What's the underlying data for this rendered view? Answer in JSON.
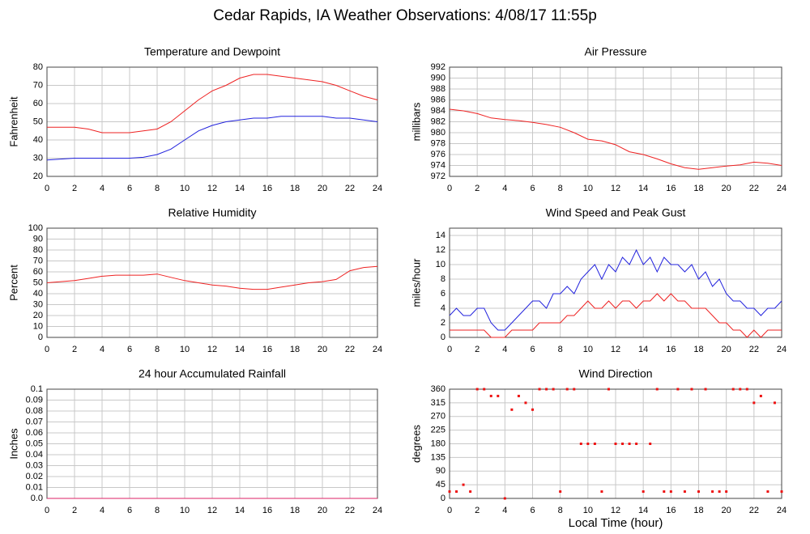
{
  "title": "Cedar Rapids, IA Weather Observations: 4/08/17 11:55p",
  "chart_data": [
    {
      "type": "line",
      "title": "Temperature and Dewpoint",
      "ylabel": "Fahrenheit",
      "x": [
        0,
        1,
        2,
        3,
        4,
        5,
        6,
        7,
        8,
        9,
        10,
        11,
        12,
        13,
        14,
        15,
        16,
        17,
        18,
        19,
        20,
        21,
        22,
        23,
        24
      ],
      "series": [
        {
          "color": "#ee2222",
          "values": [
            47,
            47,
            47,
            46,
            44,
            44,
            44,
            45,
            46,
            50,
            56,
            62,
            67,
            70,
            74,
            76,
            76,
            75,
            74,
            73,
            72,
            70,
            67,
            64,
            62
          ]
        },
        {
          "color": "#2222dd",
          "values": [
            29,
            29.5,
            30,
            30,
            30,
            30,
            30,
            30.5,
            32,
            35,
            40,
            45,
            48,
            50,
            51,
            52,
            52,
            53,
            53,
            53,
            53,
            52,
            52,
            51,
            50
          ]
        }
      ],
      "xlim": [
        0,
        24
      ],
      "xticks": [
        0,
        2,
        4,
        6,
        8,
        10,
        12,
        14,
        16,
        18,
        20,
        22,
        24
      ],
      "ylim": [
        20,
        80
      ],
      "yticks": [
        20,
        30,
        40,
        50,
        60,
        70,
        80
      ],
      "grid": true
    },
    {
      "type": "line",
      "title": "Air Pressure",
      "ylabel": "millibars",
      "x": [
        0,
        1,
        2,
        3,
        4,
        5,
        6,
        7,
        8,
        9,
        10,
        11,
        12,
        13,
        14,
        15,
        16,
        17,
        18,
        19,
        20,
        21,
        22,
        23,
        24
      ],
      "series": [
        {
          "color": "#ee2222",
          "values": [
            984.3,
            984,
            983.5,
            982.7,
            982.4,
            982.2,
            981.9,
            981.5,
            981,
            980,
            978.8,
            978.5,
            977.8,
            976.5,
            976,
            975.2,
            974.3,
            973.6,
            973.3,
            973.6,
            973.9,
            974.1,
            974.6,
            974.4,
            974
          ]
        }
      ],
      "xlim": [
        0,
        24
      ],
      "xticks": [
        0,
        2,
        4,
        6,
        8,
        10,
        12,
        14,
        16,
        18,
        20,
        22,
        24
      ],
      "ylim": [
        972,
        992
      ],
      "yticks": [
        972,
        974,
        976,
        978,
        980,
        982,
        984,
        986,
        988,
        990,
        992
      ],
      "grid": true
    },
    {
      "type": "line",
      "title": "Relative Humidity",
      "ylabel": "Percent",
      "x": [
        0,
        1,
        2,
        3,
        4,
        5,
        6,
        7,
        8,
        9,
        10,
        11,
        12,
        13,
        14,
        15,
        16,
        17,
        18,
        19,
        20,
        21,
        22,
        23,
        24
      ],
      "series": [
        {
          "color": "#ee2222",
          "values": [
            50,
            51,
            52,
            54,
            56,
            57,
            57,
            57,
            58,
            55,
            52,
            50,
            48,
            47,
            45,
            44,
            44,
            46,
            48,
            50,
            51,
            53,
            61,
            64,
            65
          ]
        }
      ],
      "xlim": [
        0,
        24
      ],
      "xticks": [
        0,
        2,
        4,
        6,
        8,
        10,
        12,
        14,
        16,
        18,
        20,
        22,
        24
      ],
      "ylim": [
        0,
        100
      ],
      "yticks": [
        0,
        10,
        20,
        30,
        40,
        50,
        60,
        70,
        80,
        90,
        100
      ],
      "grid": true
    },
    {
      "type": "line",
      "title": "Wind Speed and Peak Gust",
      "ylabel": "miles/hour",
      "x": [
        0,
        0.5,
        1,
        1.5,
        2,
        2.5,
        3,
        3.5,
        4,
        4.5,
        5,
        5.5,
        6,
        6.5,
        7,
        7.5,
        8,
        8.5,
        9,
        9.5,
        10,
        10.5,
        11,
        11.5,
        12,
        12.5,
        13,
        13.5,
        14,
        14.5,
        15,
        15.5,
        16,
        16.5,
        17,
        17.5,
        18,
        18.5,
        19,
        19.5,
        20,
        20.5,
        21,
        21.5,
        22,
        22.5,
        23,
        23.5,
        24
      ],
      "series": [
        {
          "color": "#2222dd",
          "values": [
            3,
            4,
            3,
            3,
            4,
            4,
            2,
            1,
            1,
            2,
            3,
            4,
            5,
            5,
            4,
            6,
            6,
            7,
            6,
            8,
            9,
            10,
            8,
            10,
            9,
            11,
            10,
            12,
            10,
            11,
            9,
            11,
            10,
            10,
            9,
            10,
            8,
            9,
            7,
            8,
            6,
            5,
            5,
            4,
            4,
            3,
            4,
            4,
            5
          ]
        },
        {
          "color": "#ee2222",
          "values": [
            1,
            1,
            1,
            1,
            1,
            1,
            0,
            0,
            0,
            1,
            1,
            1,
            1,
            2,
            2,
            2,
            2,
            3,
            3,
            4,
            5,
            4,
            4,
            5,
            4,
            5,
            5,
            4,
            5,
            5,
            6,
            5,
            6,
            5,
            5,
            4,
            4,
            4,
            3,
            2,
            2,
            1,
            1,
            0,
            1,
            0,
            1,
            1,
            1
          ]
        }
      ],
      "xlim": [
        0,
        24
      ],
      "xticks": [
        0,
        2,
        4,
        6,
        8,
        10,
        12,
        14,
        16,
        18,
        20,
        22,
        24
      ],
      "ylim": [
        0,
        15
      ],
      "yticks": [
        0,
        2,
        4,
        6,
        8,
        10,
        12,
        14
      ],
      "grid": true
    },
    {
      "type": "line",
      "title": "24 hour Accumulated Rainfall",
      "ylabel": "Inches",
      "x": [
        0,
        1,
        2,
        3,
        4,
        5,
        6,
        7,
        8,
        9,
        10,
        11,
        12,
        13,
        14,
        15,
        16,
        17,
        18,
        19,
        20,
        21,
        22,
        23,
        24
      ],
      "series": [
        {
          "color": "#dd2266",
          "values": [
            0,
            0,
            0,
            0,
            0,
            0,
            0,
            0,
            0,
            0,
            0,
            0,
            0,
            0,
            0,
            0,
            0,
            0,
            0,
            0,
            0,
            0,
            0,
            0,
            0
          ]
        }
      ],
      "xlim": [
        0,
        24
      ],
      "xticks": [
        0,
        2,
        4,
        6,
        8,
        10,
        12,
        14,
        16,
        18,
        20,
        22,
        24
      ],
      "ylim": [
        0,
        0.1
      ],
      "yticks": [
        {
          "value": 0,
          "label": "0.0"
        },
        0.01,
        0.02,
        0.03,
        0.04,
        0.05,
        0.06,
        0.07,
        0.08,
        0.09,
        0.1
      ],
      "grid": true
    },
    {
      "type": "scatter",
      "title": "Wind Direction",
      "ylabel": "degrees",
      "xlabel": "Local Time (hour)",
      "x": [
        0,
        0.5,
        1,
        1.5,
        2,
        2.5,
        3,
        3.5,
        4,
        4.5,
        5,
        5.5,
        6,
        6.5,
        7,
        7.5,
        8,
        8.5,
        9,
        9.5,
        10,
        10.5,
        11,
        11.5,
        12,
        12.5,
        13,
        13.5,
        14,
        14.5,
        15,
        15.5,
        16,
        16.5,
        17,
        17.5,
        18,
        18.5,
        19,
        19.5,
        20,
        20.5,
        21,
        21.5,
        22,
        22.5,
        23,
        23.5,
        24
      ],
      "series": [
        {
          "color": "#ee1111",
          "values": [
            22.5,
            22.5,
            45,
            22.5,
            360,
            360,
            337.5,
            337.5,
            0,
            292.5,
            337.5,
            315,
            292.5,
            360,
            360,
            360,
            22.5,
            360,
            360,
            180,
            180,
            180,
            22.5,
            360,
            180,
            180,
            180,
            180,
            22.5,
            180,
            360,
            22.5,
            22.5,
            360,
            22.5,
            360,
            22.5,
            360,
            22.5,
            22.5,
            22.5,
            360,
            360,
            360,
            315,
            337.5,
            22.5,
            315,
            22.5
          ]
        }
      ],
      "xlim": [
        0,
        24
      ],
      "xticks": [
        0,
        2,
        4,
        6,
        8,
        10,
        12,
        14,
        16,
        18,
        20,
        22,
        24
      ],
      "ylim": [
        0,
        360
      ],
      "yticks": [
        0,
        45,
        90,
        135,
        180,
        225,
        270,
        315,
        360
      ],
      "grid": true
    }
  ]
}
